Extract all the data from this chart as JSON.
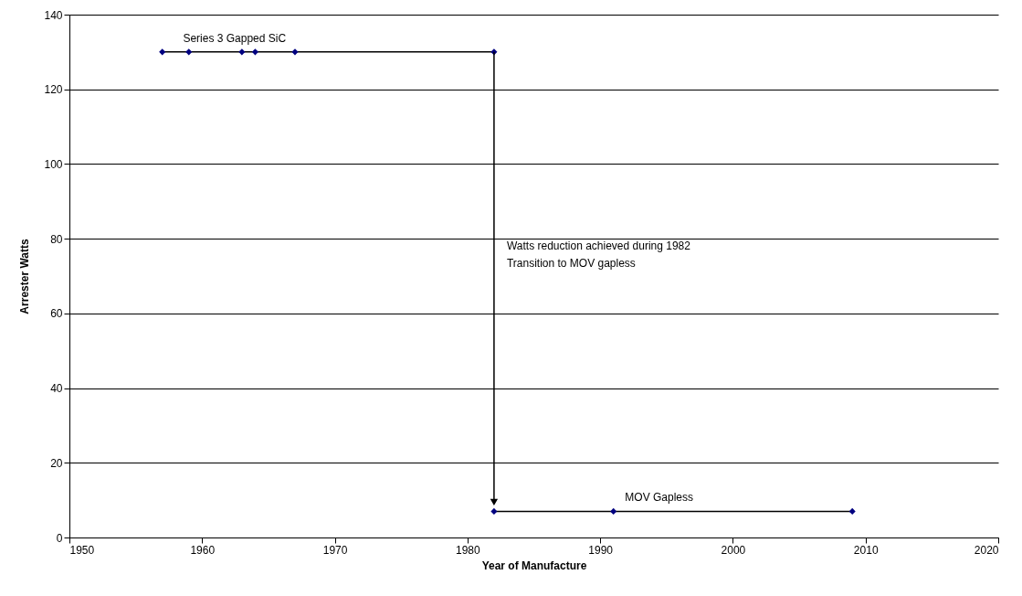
{
  "chart_data": {
    "type": "line",
    "xlabel": "Year of Manufacture",
    "ylabel": "Arrester Watts",
    "series": [
      {
        "name": "Series 3 Gapped SiC",
        "color": "#000080",
        "x": [
          1957,
          1959,
          1963,
          1964,
          1967,
          1982
        ],
        "values": [
          130,
          130,
          130,
          130,
          130,
          130
        ]
      },
      {
        "name": "MOV Gapless",
        "color": "#000080",
        "x": [
          1982,
          1991,
          2009
        ],
        "values": [
          7,
          7,
          7
        ]
      }
    ],
    "xlim": [
      1950,
      2020
    ],
    "xticks": [
      1950,
      1960,
      1970,
      1980,
      1990,
      2000,
      2010,
      2020
    ],
    "ylim": [
      0,
      140
    ],
    "yticks": [
      0,
      20,
      40,
      60,
      80,
      100,
      120,
      140
    ],
    "grid": "y",
    "marker": "diamond",
    "line_style": "solid",
    "annotations": [
      "Watts reduction achieved during 1982",
      "Transition to MOV gapless"
    ]
  }
}
